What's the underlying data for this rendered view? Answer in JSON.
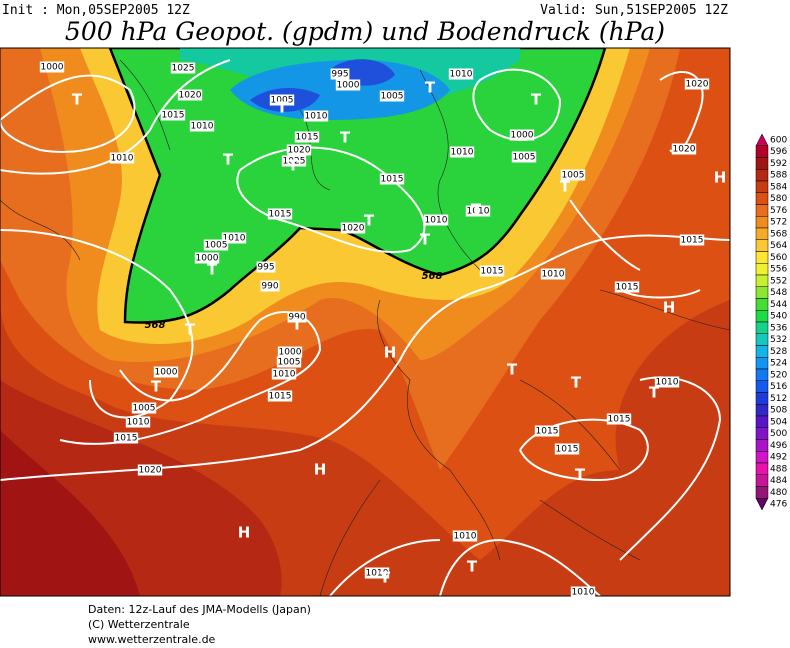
{
  "header": {
    "init": "Init : Mon,05SEP2005 12Z",
    "valid": "Valid: Sun,51SEP2005 12Z",
    "title": "500 hPa Geopot. (gpdm) und Bodendruck (hPa)"
  },
  "legend": {
    "levels": [
      600,
      596,
      592,
      588,
      584,
      580,
      576,
      572,
      568,
      564,
      560,
      556,
      552,
      548,
      544,
      540,
      536,
      532,
      528,
      524,
      520,
      516,
      512,
      508,
      504,
      500,
      496,
      492,
      488,
      484,
      480,
      476
    ],
    "colors": [
      "#c8005a",
      "#b40028",
      "#a01414",
      "#b42814",
      "#c83c14",
      "#dc5014",
      "#e66e1e",
      "#f08c1e",
      "#f5aa28",
      "#fac832",
      "#ffe632",
      "#f0f032",
      "#c8f032",
      "#8ce632",
      "#46dc32",
      "#1edc46",
      "#14d28c",
      "#14c8be",
      "#14b4e6",
      "#1496f0",
      "#1478f0",
      "#145af0",
      "#1e3cdc",
      "#3228c8",
      "#5a14c8",
      "#8214c8",
      "#aa14c8",
      "#d214c8",
      "#e614aa",
      "#c81496",
      "#961478",
      "#640064"
    ]
  },
  "map": {
    "isobar_labels": [
      "1000",
      "1025",
      "995",
      "1000",
      "1010",
      "1020",
      "1020",
      "1005",
      "1005",
      "1015",
      "1010",
      "1010",
      "1000",
      "1015",
      "1020",
      "1010",
      "1010",
      "1005",
      "1020",
      "1025",
      "1005",
      "1015",
      "1015",
      "1020",
      "1010",
      "1010",
      "1010",
      "1005",
      "1015",
      "1000",
      "995",
      "1015",
      "1010",
      "990",
      "1015",
      "990",
      "1000",
      "1005",
      "1010",
      "1000",
      "1010",
      "1015",
      "1005",
      "1010",
      "1015",
      "1015",
      "1015",
      "1015",
      "1020",
      "1010",
      "1010",
      "1010"
    ],
    "contour_labels": [
      "568",
      "568"
    ],
    "pressure_centers": [
      "T",
      "T",
      "T",
      "T",
      "T",
      "T",
      "T",
      "H",
      "T",
      "T",
      "T",
      "T",
      "T",
      "H",
      "T",
      "T",
      "H",
      "T",
      "T",
      "T",
      "T",
      "H",
      "T",
      "H",
      "T",
      "T"
    ]
  },
  "footer": {
    "lines": [
      "Daten: 12z-Lauf des JMA-Modells (Japan)",
      "(C) Wetterzentrale",
      "www.wetterzentrale.de"
    ]
  }
}
